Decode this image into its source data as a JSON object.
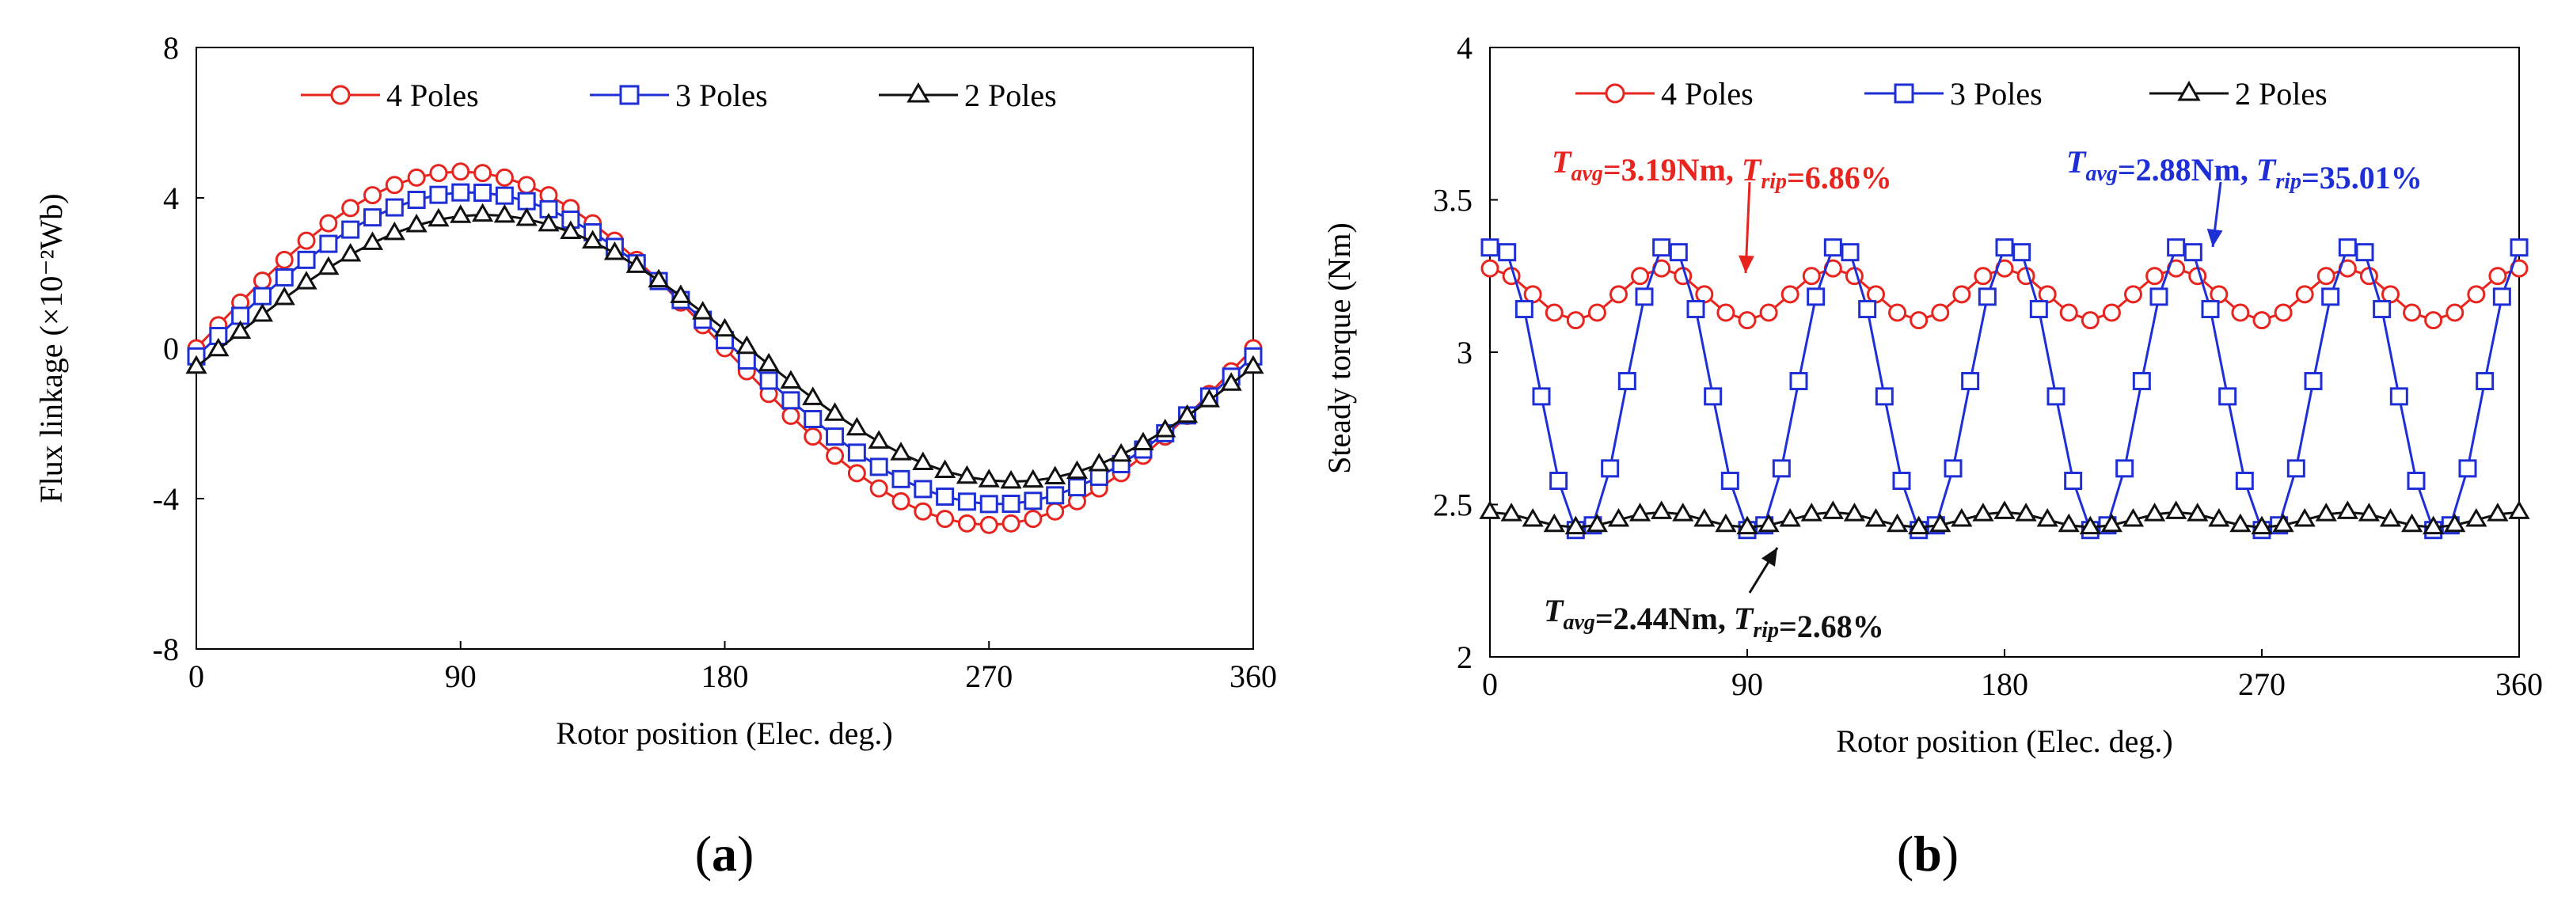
{
  "chart_data": [
    {
      "id": "a",
      "type": "line",
      "caption": "(a)",
      "caption_letter": "a",
      "xlabel": "Rotor position (Elec. deg.)",
      "ylabel": "Flux linkage (×10⁻²Wb)",
      "xlim": [
        0,
        360
      ],
      "ylim": [
        -8,
        8
      ],
      "xticks": [
        0,
        90,
        180,
        270,
        360
      ],
      "yticks": [
        -8,
        -4,
        0,
        4,
        8
      ],
      "legend_position": "top",
      "series": [
        {
          "name": "4 Poles",
          "color": "#e8241f",
          "marker": "circle",
          "amplitude": 4.7,
          "phase": 0,
          "offset": 0,
          "ripple": 0,
          "ripple_harmonic": 0,
          "n_points": 49
        },
        {
          "name": "3 Poles",
          "color": "#1f2fd6",
          "marker": "square",
          "amplitude": 4.15,
          "phase": -3,
          "offset": 0,
          "ripple": 0,
          "ripple_harmonic": 0,
          "n_points": 49
        },
        {
          "name": "2 Poles",
          "color": "#111111",
          "marker": "triangle",
          "amplitude": 3.55,
          "phase": -8,
          "offset": 0,
          "ripple": 0,
          "ripple_harmonic": 0,
          "n_points": 49
        }
      ]
    },
    {
      "id": "b",
      "type": "line",
      "caption": "(b)",
      "caption_letter": "b",
      "xlabel": "Rotor position (Elec. deg.)",
      "ylabel": "Steady torque  (Nm)",
      "xlim": [
        0,
        360
      ],
      "ylim": [
        2,
        4
      ],
      "xticks": [
        0,
        90,
        180,
        270,
        360
      ],
      "yticks": [
        2,
        2.5,
        3,
        3.5,
        4
      ],
      "ytick_labels": [
        "2",
        "2.5",
        "3",
        "3.5",
        "4"
      ],
      "legend_position": "top",
      "series": [
        {
          "name": "4 Poles",
          "color": "#e8241f",
          "marker": "circle",
          "amplitude": 0,
          "phase": 0,
          "offset": 3.19,
          "ripple": 0.085,
          "ripple_harmonic": 6,
          "ripple_phase": 90,
          "n_points": 49
        },
        {
          "name": "3 Poles",
          "color": "#1f2fd6",
          "marker": "square",
          "amplitude": 0,
          "phase": 0,
          "offset": 2.88,
          "ripple": 0.48,
          "ripple_harmonic": 6,
          "ripple_phase": 75,
          "n_points": 61
        },
        {
          "name": "2 Poles",
          "color": "#111111",
          "marker": "triangle",
          "amplitude": 0,
          "phase": 0,
          "offset": 2.45,
          "ripple": 0.025,
          "ripple_harmonic": 6,
          "ripple_phase": 90,
          "n_points": 49
        }
      ],
      "annotations": [
        {
          "prefix": "T",
          "sub1": "avg",
          "mid": "=3.19Nm, ",
          "prefix2": "T",
          "sub2": "rip",
          "suffix": "=6.86%",
          "color": "#e8241f",
          "target_series": "4 Poles",
          "target_x": 65
        },
        {
          "prefix": "T",
          "sub1": "avg",
          "mid": "=2.88Nm, ",
          "prefix2": "T",
          "sub2": "rip",
          "suffix": "=35.01%",
          "color": "#1f2fd6",
          "target_series": "3 Poles",
          "target_x": 250
        },
        {
          "prefix": "T",
          "sub1": "avg",
          "mid": "=2.44Nm, ",
          "prefix2": "T",
          "sub2": "rip",
          "suffix": "=2.68%",
          "color": "#111111",
          "target_series": "2 Poles",
          "target_x": 135
        }
      ]
    }
  ]
}
